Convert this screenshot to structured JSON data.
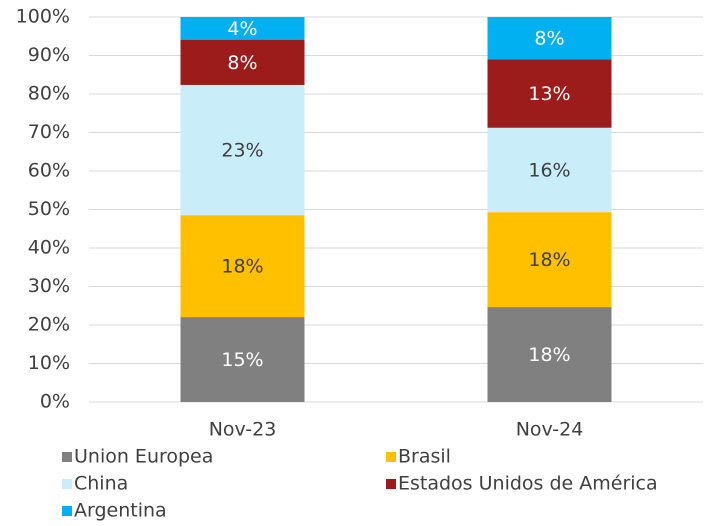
{
  "chart_data": {
    "type": "stacked_bar",
    "stacking": "percent",
    "categories": [
      "Nov-23",
      "Nov-24"
    ],
    "series": [
      {
        "name": "Union Europea",
        "color": "#808080",
        "label_color": "#ffffff",
        "values": [
          15,
          18
        ],
        "value_labels": [
          "15%",
          "18%"
        ]
      },
      {
        "name": "Brasil",
        "color": "#ffc000",
        "label_color": "#404040",
        "values": [
          18,
          18
        ],
        "value_labels": [
          "18%",
          "18%"
        ]
      },
      {
        "name": "China",
        "color": "#c9eefa",
        "label_color": "#404040",
        "values": [
          23,
          16
        ],
        "value_labels": [
          "23%",
          "16%"
        ]
      },
      {
        "name": "Estados Unidos de América",
        "color": "#9c1c1c",
        "label_color": "#ffffff",
        "values": [
          8,
          13
        ],
        "value_labels": [
          "8%",
          "13%"
        ]
      },
      {
        "name": "Argentina",
        "color": "#00b0f0",
        "label_color": "#ffffff",
        "values": [
          4,
          8
        ],
        "value_labels": [
          "4%",
          "8%"
        ]
      }
    ],
    "ylim": [
      0,
      100
    ],
    "yticks": [
      {
        "value": 0,
        "label": "0%"
      },
      {
        "value": 10,
        "label": "10%"
      },
      {
        "value": 20,
        "label": "20%"
      },
      {
        "value": 30,
        "label": "30%"
      },
      {
        "value": 40,
        "label": "40%"
      },
      {
        "value": 50,
        "label": "50%"
      },
      {
        "value": 60,
        "label": "60%"
      },
      {
        "value": 70,
        "label": "70%"
      },
      {
        "value": 80,
        "label": "80%"
      },
      {
        "value": 90,
        "label": "90%"
      },
      {
        "value": 100,
        "label": "100%"
      }
    ],
    "grid": true,
    "legend": "bottom"
  }
}
